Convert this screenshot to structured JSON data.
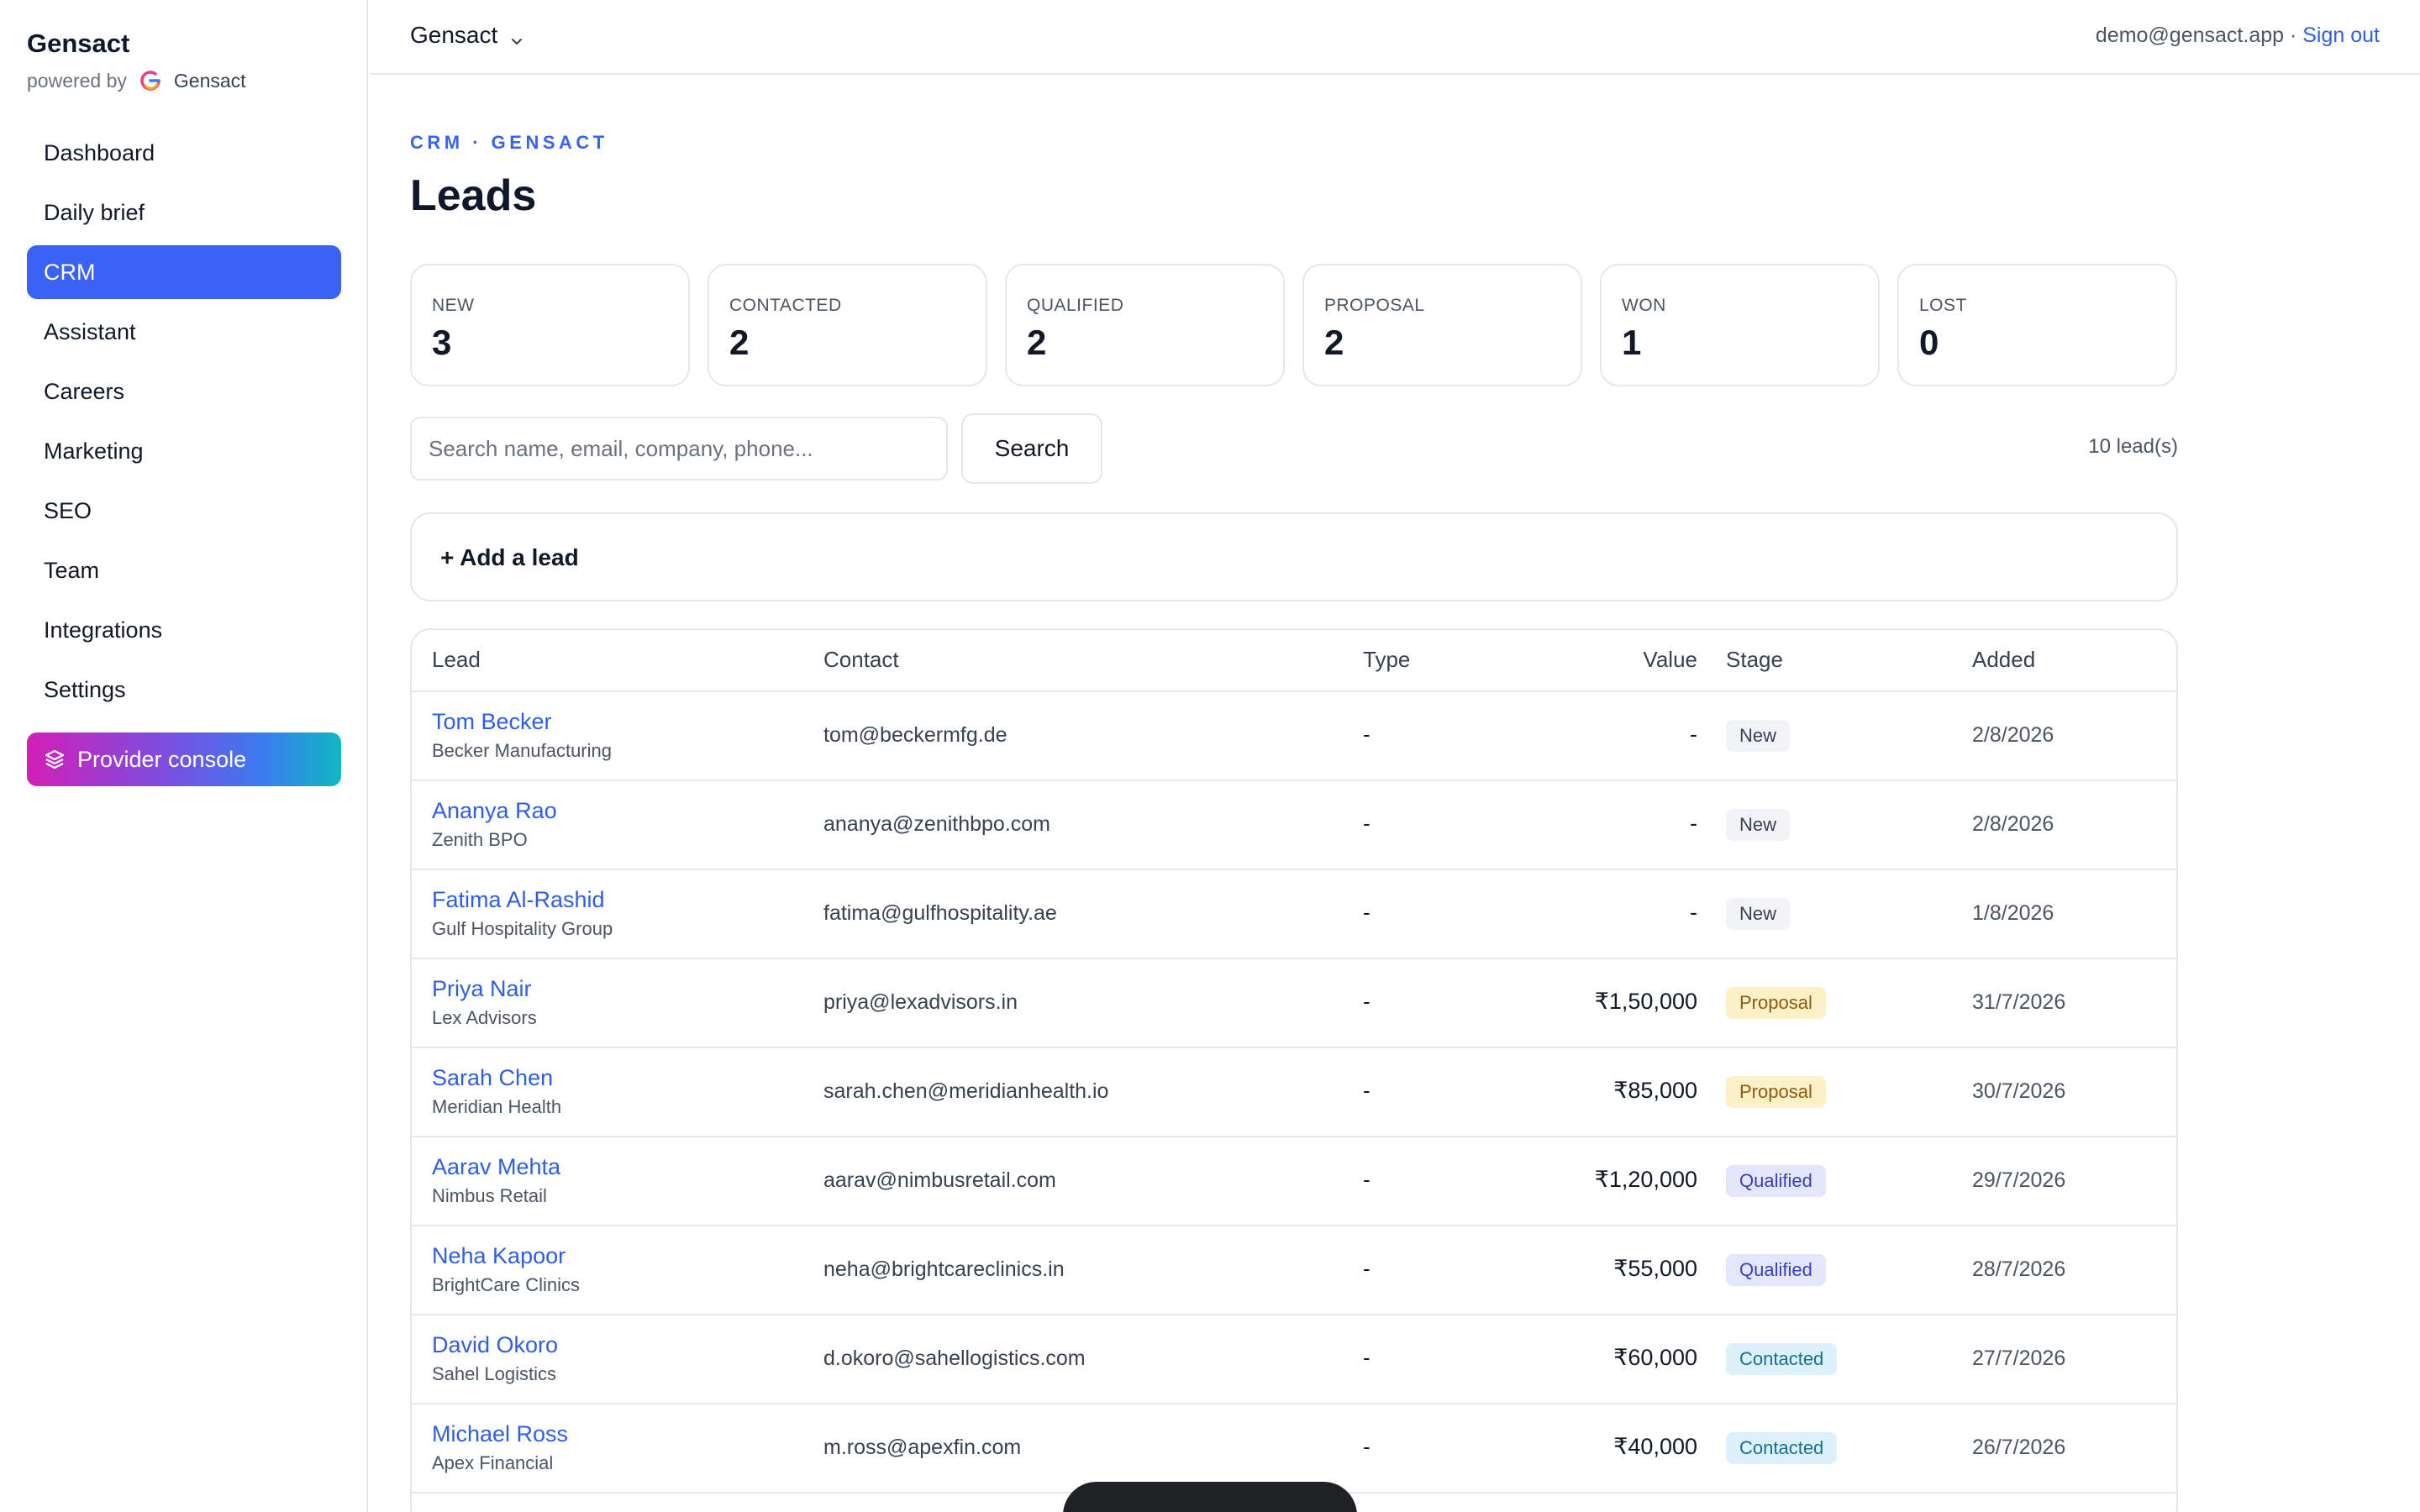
{
  "sidebar": {
    "brand": "Gensact",
    "powered_by_label": "powered by",
    "powered_by_name": "Gensact",
    "items": [
      {
        "label": "Dashboard",
        "active": false
      },
      {
        "label": "Daily brief",
        "active": false
      },
      {
        "label": "CRM",
        "active": true
      },
      {
        "label": "Assistant",
        "active": false
      },
      {
        "label": "Careers",
        "active": false
      },
      {
        "label": "Marketing",
        "active": false
      },
      {
        "label": "SEO",
        "active": false
      },
      {
        "label": "Team",
        "active": false
      },
      {
        "label": "Integrations",
        "active": false
      },
      {
        "label": "Settings",
        "active": false
      }
    ],
    "provider_console": "Provider console"
  },
  "topbar": {
    "org_name": "Gensact",
    "user_email": "demo@gensact.app",
    "separator": " · ",
    "sign_out": "Sign out"
  },
  "page": {
    "eyebrow": "CRM · GENSACT",
    "title": "Leads"
  },
  "stats": [
    {
      "label": "NEW",
      "value": "3"
    },
    {
      "label": "CONTACTED",
      "value": "2"
    },
    {
      "label": "QUALIFIED",
      "value": "2"
    },
    {
      "label": "PROPOSAL",
      "value": "2"
    },
    {
      "label": "WON",
      "value": "1"
    },
    {
      "label": "LOST",
      "value": "0"
    }
  ],
  "search": {
    "placeholder": "Search name, email, company, phone...",
    "value": "",
    "button_label": "Search",
    "count_text": "10 lead(s)"
  },
  "add_lead_label": "+ Add a lead",
  "table": {
    "headers": {
      "lead": "Lead",
      "contact": "Contact",
      "type": "Type",
      "value": "Value",
      "stage": "Stage",
      "added": "Added"
    },
    "rows": [
      {
        "name": "Tom Becker",
        "company": "Becker Manufacturing",
        "contact": "tom@beckermfg.de",
        "type": "-",
        "value": "-",
        "stage": "New",
        "stage_key": "new",
        "added": "2/8/2026"
      },
      {
        "name": "Ananya Rao",
        "company": "Zenith BPO",
        "contact": "ananya@zenithbpo.com",
        "type": "-",
        "value": "-",
        "stage": "New",
        "stage_key": "new",
        "added": "2/8/2026"
      },
      {
        "name": "Fatima Al-Rashid",
        "company": "Gulf Hospitality Group",
        "contact": "fatima@gulfhospitality.ae",
        "type": "-",
        "value": "-",
        "stage": "New",
        "stage_key": "new",
        "added": "1/8/2026"
      },
      {
        "name": "Priya Nair",
        "company": "Lex Advisors",
        "contact": "priya@lexadvisors.in",
        "type": "-",
        "value": "₹1,50,000",
        "stage": "Proposal",
        "stage_key": "proposal",
        "added": "31/7/2026"
      },
      {
        "name": "Sarah Chen",
        "company": "Meridian Health",
        "contact": "sarah.chen@meridianhealth.io",
        "type": "-",
        "value": "₹85,000",
        "stage": "Proposal",
        "stage_key": "proposal",
        "added": "30/7/2026"
      },
      {
        "name": "Aarav Mehta",
        "company": "Nimbus Retail",
        "contact": "aarav@nimbusretail.com",
        "type": "-",
        "value": "₹1,20,000",
        "stage": "Qualified",
        "stage_key": "qualified",
        "added": "29/7/2026"
      },
      {
        "name": "Neha Kapoor",
        "company": "BrightCare Clinics",
        "contact": "neha@brightcareclinics.in",
        "type": "-",
        "value": "₹55,000",
        "stage": "Qualified",
        "stage_key": "qualified",
        "added": "28/7/2026"
      },
      {
        "name": "David Okoro",
        "company": "Sahel Logistics",
        "contact": "d.okoro@sahellogistics.com",
        "type": "-",
        "value": "₹60,000",
        "stage": "Contacted",
        "stage_key": "contacted",
        "added": "27/7/2026"
      },
      {
        "name": "Michael Ross",
        "company": "Apex Financial",
        "contact": "m.ross@apexfin.com",
        "type": "-",
        "value": "₹40,000",
        "stage": "Contacted",
        "stage_key": "contacted",
        "added": "26/7/2026"
      }
    ]
  },
  "colors": {
    "accent": "#3a63f5",
    "link": "#2f5ee0",
    "border": "#e5e7eb"
  }
}
